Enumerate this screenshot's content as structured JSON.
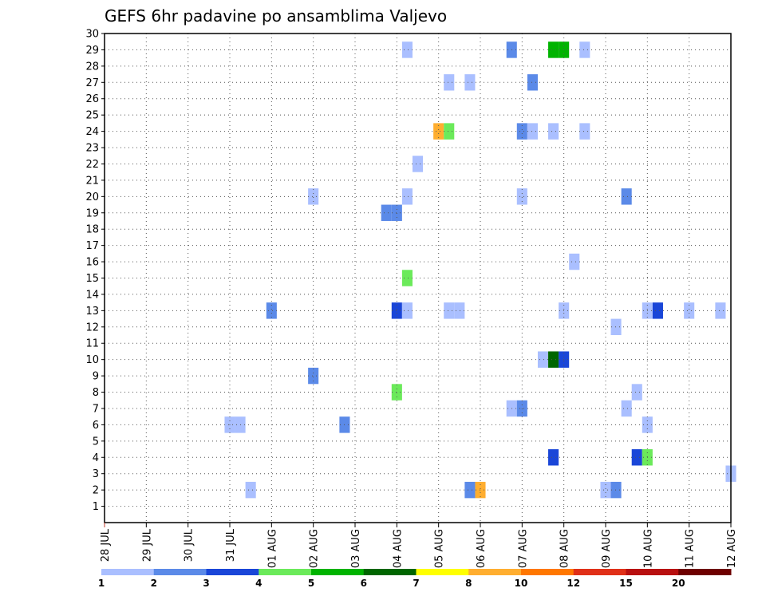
{
  "chart_data": {
    "type": "heatmap",
    "title": "GEFS 6hr padavine po ansamblima Valjevo",
    "xlabel": "",
    "ylabel": "",
    "x_tick_labels": [
      "28 JUL",
      "29 JUL",
      "30 JUL",
      "31 JUL",
      "01 AUG",
      "02 AUG",
      "03 AUG",
      "04 AUG",
      "05 AUG",
      "06 AUG",
      "07 AUG",
      "08 AUG",
      "09 AUG",
      "10 AUG",
      "11 AUG",
      "12 AUG"
    ],
    "xlim_days": [
      0,
      15
    ],
    "y_ticks": [
      1,
      2,
      3,
      4,
      5,
      6,
      7,
      8,
      9,
      10,
      11,
      12,
      13,
      14,
      15,
      16,
      17,
      18,
      19,
      20,
      21,
      22,
      23,
      24,
      25,
      26,
      27,
      28,
      29,
      30
    ],
    "ylim": [
      0,
      30
    ],
    "grid": true,
    "colorbar": {
      "placement": "bottom",
      "labels": [
        "1",
        "2",
        "3",
        "4",
        "5",
        "6",
        "7",
        "8",
        "10",
        "12",
        "15",
        "20"
      ],
      "colors": [
        "#aabfff",
        "#5b8ae8",
        "#1a46d8",
        "#6bea5a",
        "#00b300",
        "#006600",
        "#ffff00",
        "#ffae30",
        "#ff7700",
        "#e03018",
        "#b81010",
        "#6e0000"
      ]
    },
    "cells": [
      {
        "day": 3.0,
        "member": 6,
        "level": 0
      },
      {
        "day": 3.25,
        "member": 6,
        "level": 0
      },
      {
        "day": 3.5,
        "member": 2,
        "level": 0
      },
      {
        "day": 4.0,
        "member": 13,
        "level": 1
      },
      {
        "day": 5.0,
        "member": 20,
        "level": 0
      },
      {
        "day": 5.0,
        "member": 9,
        "level": 1
      },
      {
        "day": 5.75,
        "member": 6,
        "level": 1
      },
      {
        "day": 6.75,
        "member": 19,
        "level": 1
      },
      {
        "day": 7.0,
        "member": 19,
        "level": 1
      },
      {
        "day": 7.0,
        "member": 13,
        "level": 2
      },
      {
        "day": 7.0,
        "member": 8,
        "level": 3
      },
      {
        "day": 7.25,
        "member": 29,
        "level": 0
      },
      {
        "day": 7.25,
        "member": 20,
        "level": 0
      },
      {
        "day": 7.25,
        "member": 15,
        "level": 3
      },
      {
        "day": 7.25,
        "member": 13,
        "level": 0
      },
      {
        "day": 7.5,
        "member": 22,
        "level": 0
      },
      {
        "day": 8.0,
        "member": 24,
        "level": 7
      },
      {
        "day": 8.25,
        "member": 27,
        "level": 0
      },
      {
        "day": 8.25,
        "member": 24,
        "level": 3
      },
      {
        "day": 8.25,
        "member": 13,
        "level": 0
      },
      {
        "day": 8.5,
        "member": 13,
        "level": 0
      },
      {
        "day": 8.75,
        "member": 27,
        "level": 0
      },
      {
        "day": 8.75,
        "member": 2,
        "level": 1
      },
      {
        "day": 9.0,
        "member": 2,
        "level": 7
      },
      {
        "day": 9.75,
        "member": 29,
        "level": 1
      },
      {
        "day": 9.75,
        "member": 7,
        "level": 0
      },
      {
        "day": 10.0,
        "member": 24,
        "level": 1
      },
      {
        "day": 10.0,
        "member": 20,
        "level": 0
      },
      {
        "day": 10.0,
        "member": 7,
        "level": 1
      },
      {
        "day": 10.25,
        "member": 27,
        "level": 1
      },
      {
        "day": 10.25,
        "member": 24,
        "level": 0
      },
      {
        "day": 10.5,
        "member": 10,
        "level": 0
      },
      {
        "day": 10.75,
        "member": 29,
        "level": 4
      },
      {
        "day": 10.75,
        "member": 24,
        "level": 0
      },
      {
        "day": 10.75,
        "member": 10,
        "level": 5
      },
      {
        "day": 10.75,
        "member": 4,
        "level": 2
      },
      {
        "day": 11.0,
        "member": 29,
        "level": 4
      },
      {
        "day": 11.0,
        "member": 13,
        "level": 0
      },
      {
        "day": 11.0,
        "member": 10,
        "level": 2
      },
      {
        "day": 11.25,
        "member": 16,
        "level": 0
      },
      {
        "day": 11.5,
        "member": 29,
        "level": 0
      },
      {
        "day": 11.5,
        "member": 24,
        "level": 0
      },
      {
        "day": 12.0,
        "member": 2,
        "level": 0
      },
      {
        "day": 12.25,
        "member": 12,
        "level": 0
      },
      {
        "day": 12.25,
        "member": 2,
        "level": 1
      },
      {
        "day": 12.5,
        "member": 20,
        "level": 1
      },
      {
        "day": 12.5,
        "member": 7,
        "level": 0
      },
      {
        "day": 12.75,
        "member": 8,
        "level": 0
      },
      {
        "day": 12.75,
        "member": 4,
        "level": 2
      },
      {
        "day": 13.0,
        "member": 13,
        "level": 0
      },
      {
        "day": 13.0,
        "member": 6,
        "level": 0
      },
      {
        "day": 13.0,
        "member": 4,
        "level": 3
      },
      {
        "day": 13.25,
        "member": 13,
        "level": 2
      },
      {
        "day": 14.0,
        "member": 13,
        "level": 0
      },
      {
        "day": 14.75,
        "member": 13,
        "level": 0
      },
      {
        "day": 15.0,
        "member": 3,
        "level": 0
      }
    ]
  }
}
